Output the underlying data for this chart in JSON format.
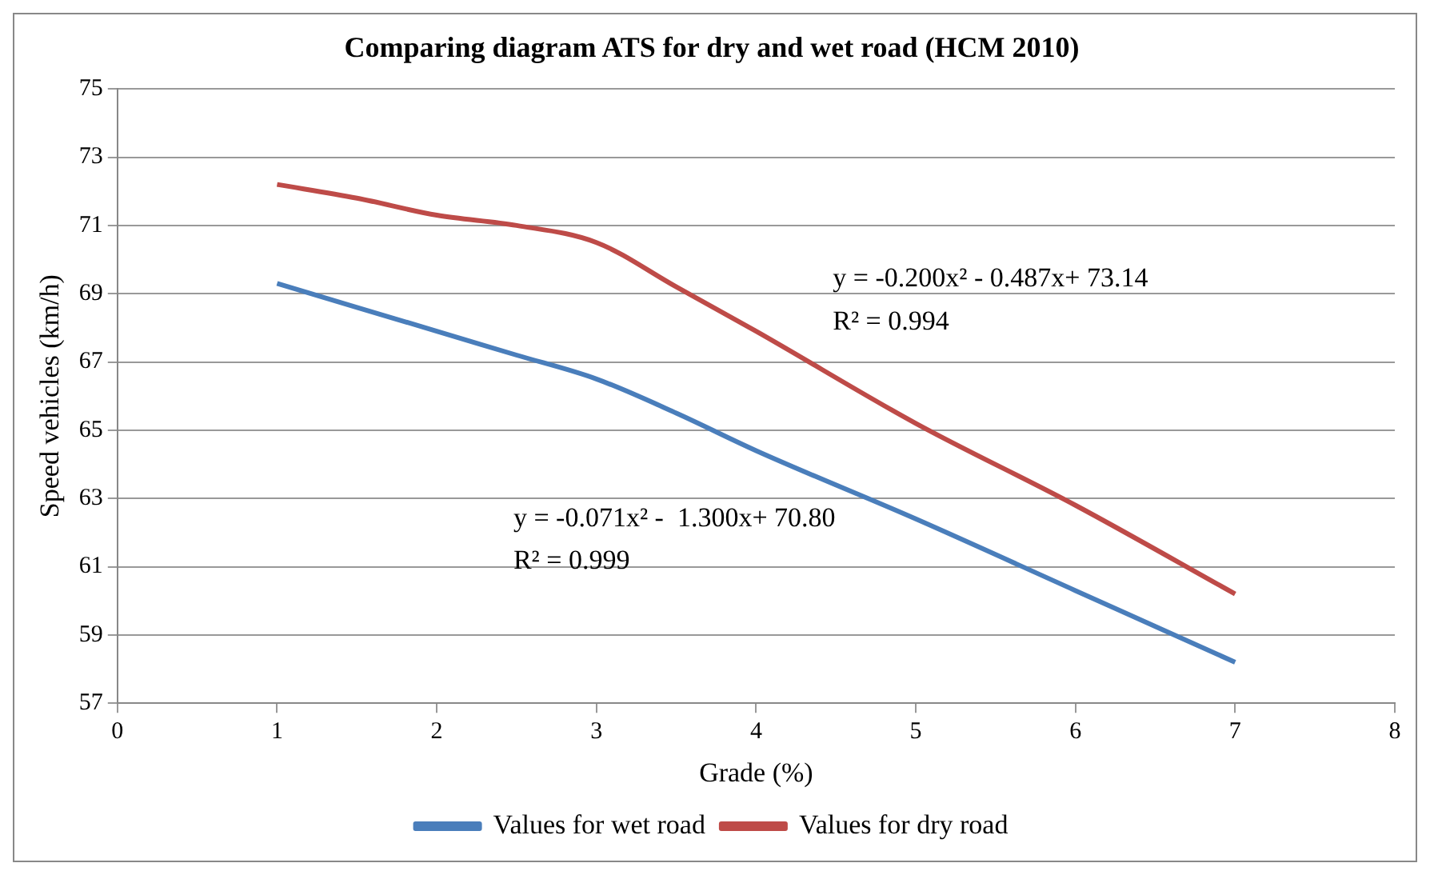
{
  "chart_data": {
    "type": "line",
    "title": "Comparing diagram ATS for dry and wet road (HCM 2010)",
    "xlabel": "Grade (%)",
    "ylabel": "Speed vehicles (km/h)",
    "x": [
      1,
      1.5,
      2,
      2.5,
      3,
      3.5,
      4,
      5,
      6,
      7
    ],
    "series": [
      {
        "name": "Values for wet road",
        "color": "#4a7ebb",
        "values": [
          69.3,
          68.6,
          67.9,
          67.2,
          66.5,
          65.5,
          64.4,
          62.4,
          60.3,
          58.2
        ]
      },
      {
        "name": "Values for dry road",
        "color": "#be4b48",
        "values": [
          72.2,
          71.8,
          71.3,
          71.0,
          70.5,
          69.2,
          67.9,
          65.2,
          62.8,
          60.2
        ]
      }
    ],
    "xlim": [
      0,
      8
    ],
    "xticks": [
      0,
      1,
      2,
      3,
      4,
      5,
      6,
      7,
      8
    ],
    "ylim": [
      57,
      75
    ],
    "yticks": [
      57,
      59,
      61,
      63,
      65,
      67,
      69,
      71,
      73,
      75
    ],
    "grid": "y",
    "legend": "bottom",
    "marker": "none",
    "line_style": "solid",
    "annotations": [
      "y = -0.200x² - 0.487x+ 73.14",
      "R² = 0.994",
      "y = -0.071x² -  1.300x+ 70.80",
      "R² = 0.999"
    ]
  }
}
